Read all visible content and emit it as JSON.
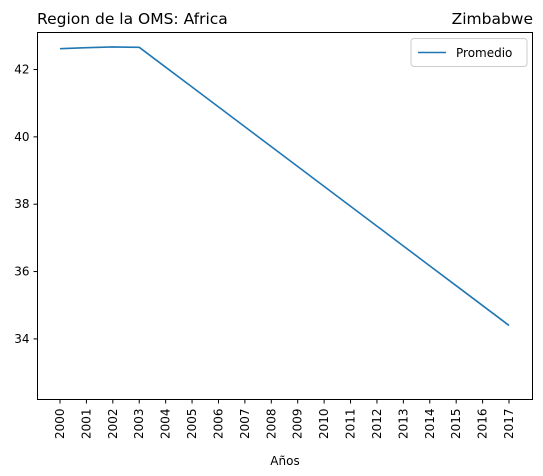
{
  "chart_data": {
    "type": "line",
    "title_left": "Region de la OMS: Africa",
    "title_right": "Zimbabwe",
    "xlabel": "Años",
    "ylabel": "",
    "x": [
      "2000",
      "2001",
      "2002",
      "2003",
      "2004",
      "2005",
      "2006",
      "2007",
      "2008",
      "2009",
      "2010",
      "2011",
      "2012",
      "2013",
      "2014",
      "2015",
      "2016",
      "2017"
    ],
    "ylim": [
      32.2,
      43.1
    ],
    "yticks": [
      "34",
      "36",
      "38",
      "40",
      "42"
    ],
    "series": [
      {
        "name": "Promedio",
        "color": "#1f77b4",
        "values": [
          42.62,
          42.65,
          42.67,
          42.66,
          42.07,
          41.48,
          40.89,
          40.3,
          39.71,
          39.12,
          38.53,
          37.94,
          37.35,
          36.76,
          36.17,
          35.58,
          34.99,
          34.4
        ]
      }
    ],
    "legend": "top-right",
    "grid": false
  }
}
